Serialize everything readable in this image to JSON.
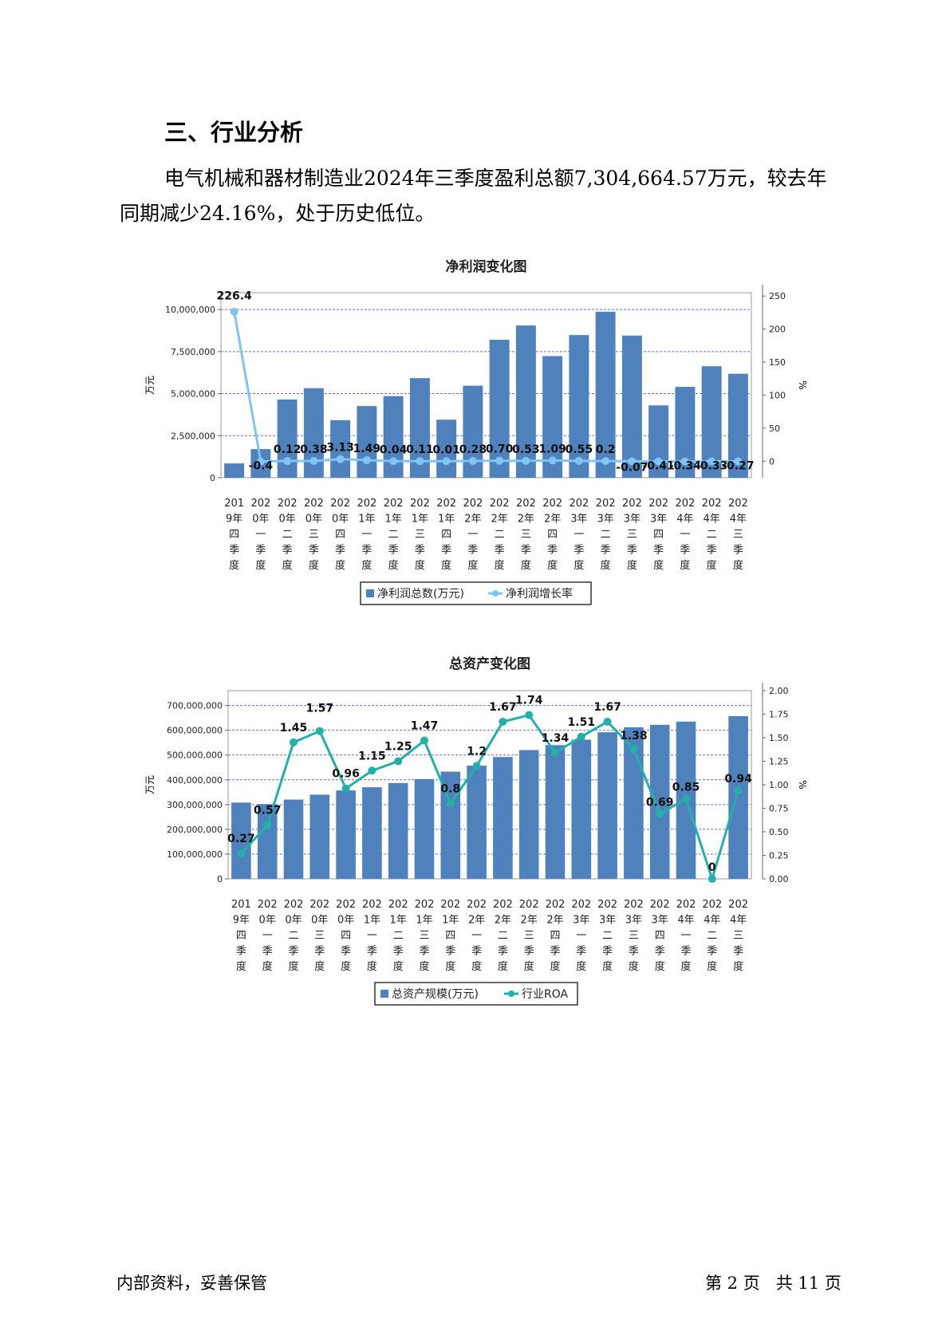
{
  "heading": "三、行业分析",
  "paragraph": "电气机械和器材制造业2024年三季度盈利总额7,304,664.57万元，较去年同期减少24.16%，处于历史低位。",
  "footer": {
    "left": "内部资料，妥善保管",
    "page": "第 2 页",
    "total": "共 11 页"
  },
  "colors": {
    "bar": "#4f81bd",
    "line1": "#7fc4f4",
    "line2": "#22b0a8",
    "grid": "#6b6bd6"
  },
  "chart_data": [
    {
      "type": "bar",
      "title": "净利润变化图",
      "ylabel": "万元",
      "y2label": "%",
      "ylim": [
        0,
        11000000
      ],
      "yticks": [
        "0",
        "2,500,000",
        "5,000,000",
        "7,500,000",
        "10,000,000"
      ],
      "y2lim": [
        -25,
        255
      ],
      "y2ticks": [
        "0",
        "50",
        "100",
        "150",
        "200",
        "250"
      ],
      "categories": [
        [
          "201",
          "9年",
          "四",
          "季",
          "度"
        ],
        [
          "202",
          "0年",
          "一",
          "季",
          "度"
        ],
        [
          "202",
          "0年",
          "二",
          "季",
          "度"
        ],
        [
          "202",
          "0年",
          "三",
          "季",
          "度"
        ],
        [
          "202",
          "0年",
          "四",
          "季",
          "度"
        ],
        [
          "202",
          "1年",
          "一",
          "季",
          "度"
        ],
        [
          "202",
          "1年",
          "二",
          "季",
          "度"
        ],
        [
          "202",
          "1年",
          "三",
          "季",
          "度"
        ],
        [
          "202",
          "1年",
          "四",
          "季",
          "度"
        ],
        [
          "202",
          "2年",
          "一",
          "季",
          "度"
        ],
        [
          "202",
          "2年",
          "二",
          "季",
          "度"
        ],
        [
          "202",
          "2年",
          "三",
          "季",
          "度"
        ],
        [
          "202",
          "2年",
          "四",
          "季",
          "度"
        ],
        [
          "202",
          "3年",
          "一",
          "季",
          "度"
        ],
        [
          "202",
          "3年",
          "二",
          "季",
          "度"
        ],
        [
          "202",
          "3年",
          "三",
          "季",
          "度"
        ],
        [
          "202",
          "3年",
          "四",
          "季",
          "度"
        ],
        [
          "202",
          "4年",
          "一",
          "季",
          "度"
        ],
        [
          "202",
          "4年",
          "二",
          "季",
          "度"
        ],
        [
          "202",
          "4年",
          "三",
          "季",
          "度"
        ]
      ],
      "series": [
        {
          "name": "净利润总数(万元)",
          "kind": "bar",
          "values": [
            850000,
            1700000,
            4650000,
            5320000,
            3420000,
            4260000,
            4850000,
            5920000,
            3450000,
            5470000,
            8200000,
            9050000,
            7230000,
            8480000,
            9870000,
            8450000,
            4300000,
            5400000,
            6630000,
            6180000
          ]
        },
        {
          "name": "净利润增长率",
          "kind": "line",
          "values": [
            226.4,
            -0.4,
            0.12,
            0.38,
            3.13,
            1.49,
            0.04,
            0.11,
            0.01,
            0.28,
            0.7,
            0.53,
            1.09,
            0.55,
            0.2,
            -0.07,
            -0.41,
            -0.34,
            -0.33,
            -0.27
          ],
          "labels": [
            "226.4",
            "-0.4",
            "0.12",
            "0.38",
            "3.13",
            "1.49",
            "0.04",
            "0.11",
            "0.01",
            "0.28",
            "0.70",
            "0.53",
            "1.09",
            "0.55",
            "0.2",
            "-0.07",
            "-0.41",
            "-0.34",
            "-0.33",
            "-0.27"
          ]
        }
      ],
      "legend": "bottom"
    },
    {
      "type": "bar",
      "title": "总资产变化图",
      "ylabel": "万元",
      "y2label": "%",
      "ylim": [
        0,
        760000000
      ],
      "yticks": [
        "0",
        "100,000,000",
        "200,000,000",
        "300,000,000",
        "400,000,000",
        "500,000,000",
        "600,000,000",
        "700,000,000"
      ],
      "y2lim": [
        0,
        2.0
      ],
      "y2ticks": [
        "0.00",
        "0.25",
        "0.50",
        "0.75",
        "1.00",
        "1.25",
        "1.50",
        "1.75",
        "2.00"
      ],
      "categories": [
        [
          "201",
          "9年",
          "四",
          "季",
          "度"
        ],
        [
          "202",
          "0年",
          "一",
          "季",
          "度"
        ],
        [
          "202",
          "0年",
          "二",
          "季",
          "度"
        ],
        [
          "202",
          "0年",
          "三",
          "季",
          "度"
        ],
        [
          "202",
          "0年",
          "四",
          "季",
          "度"
        ],
        [
          "202",
          "1年",
          "一",
          "季",
          "度"
        ],
        [
          "202",
          "1年",
          "二",
          "季",
          "度"
        ],
        [
          "202",
          "1年",
          "三",
          "季",
          "度"
        ],
        [
          "202",
          "1年",
          "四",
          "季",
          "度"
        ],
        [
          "202",
          "2年",
          "一",
          "季",
          "度"
        ],
        [
          "202",
          "2年",
          "二",
          "季",
          "度"
        ],
        [
          "202",
          "2年",
          "三",
          "季",
          "度"
        ],
        [
          "202",
          "2年",
          "四",
          "季",
          "度"
        ],
        [
          "202",
          "3年",
          "一",
          "季",
          "度"
        ],
        [
          "202",
          "3年",
          "二",
          "季",
          "度"
        ],
        [
          "202",
          "3年",
          "三",
          "季",
          "度"
        ],
        [
          "202",
          "3年",
          "四",
          "季",
          "度"
        ],
        [
          "202",
          "4年",
          "一",
          "季",
          "度"
        ],
        [
          "202",
          "4年",
          "二",
          "季",
          "度"
        ],
        [
          "202",
          "4年",
          "三",
          "季",
          "度"
        ]
      ],
      "series": [
        {
          "name": "总资产规模(万元)",
          "kind": "bar",
          "values": [
            308000000,
            302000000,
            320000000,
            340000000,
            357000000,
            370000000,
            387000000,
            403000000,
            433000000,
            457000000,
            492000000,
            520000000,
            540000000,
            562000000,
            592000000,
            612000000,
            622000000,
            635000000,
            null,
            657000000
          ]
        },
        {
          "name": "行业ROA",
          "kind": "line",
          "values": [
            0.27,
            0.57,
            1.45,
            1.57,
            0.96,
            1.15,
            1.25,
            1.47,
            0.8,
            1.2,
            1.67,
            1.74,
            1.34,
            1.51,
            1.67,
            1.38,
            0.69,
            0.85,
            0,
            0.94
          ],
          "labels": [
            "0.27",
            "0.57",
            "1.45",
            "1.57",
            "0.96",
            "1.15",
            "1.25",
            "1.47",
            "0.8",
            "1.2",
            "1.67",
            "1.74",
            "1.34",
            "1.51",
            "1.67",
            "1.38",
            "0.69",
            "0.85",
            "0",
            "0.94"
          ]
        }
      ],
      "legend": "bottom"
    }
  ]
}
